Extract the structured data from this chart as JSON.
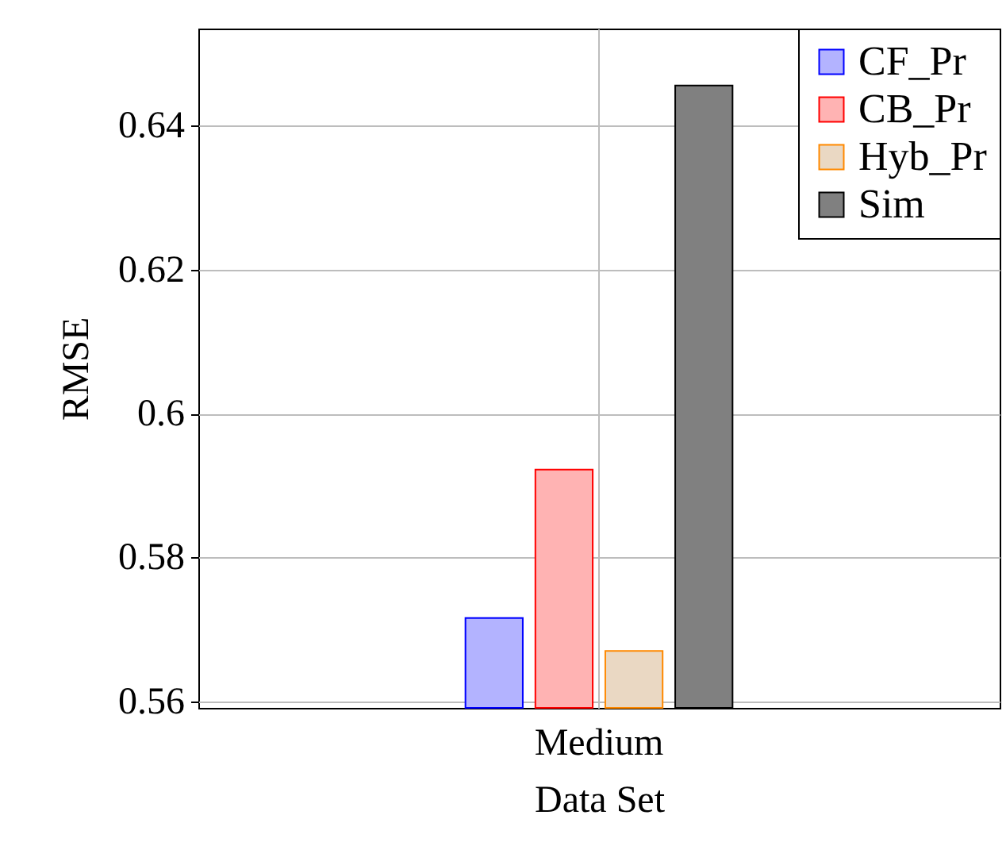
{
  "chart_data": {
    "type": "bar",
    "xlabel": "Data Set",
    "ylabel": "RMSE",
    "categories": [
      "Medium"
    ],
    "series": [
      {
        "name": "CF_Pr",
        "color": "#b3b3ff",
        "values": [
          0.5716
        ]
      },
      {
        "name": "CB_Pr",
        "color": "#ffb3b3",
        "values": [
          0.5922
        ]
      },
      {
        "name": "Hyb_Pr",
        "color": "#ead8c3",
        "values": [
          0.567
        ]
      },
      {
        "name": "Sim",
        "color": "#808080",
        "values": [
          0.6456
        ]
      }
    ],
    "ylim": [
      0.5591,
      0.6535
    ],
    "yticks": [
      0.56,
      0.58,
      0.6,
      0.62,
      0.64
    ],
    "grid": true,
    "legend": "top right"
  }
}
